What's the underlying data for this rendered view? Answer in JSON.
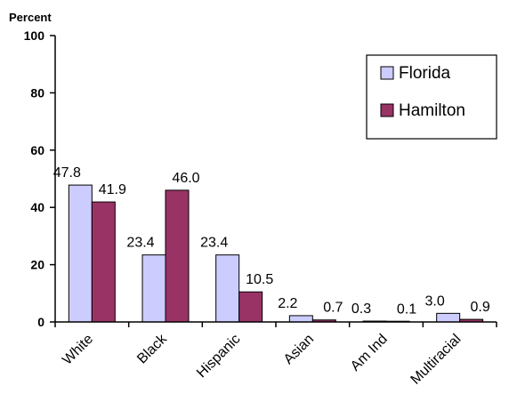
{
  "chart_data": {
    "type": "bar",
    "ylabel": "Percent",
    "ylim": [
      0,
      100
    ],
    "yticks": [
      0,
      20,
      40,
      60,
      80,
      100
    ],
    "grid": false,
    "legend_position": "top-right",
    "categories": [
      "White",
      "Black",
      "Hispanic",
      "Asian",
      "Am Ind",
      "Multiracial"
    ],
    "series": [
      {
        "name": "Florida",
        "color": "#ccccff",
        "values": [
          47.8,
          23.4,
          23.4,
          2.2,
          0.3,
          3.0
        ],
        "labels": [
          "47.8",
          "23.4",
          "23.4",
          "2.2",
          "0.3",
          "3.0"
        ]
      },
      {
        "name": "Hamilton",
        "color": "#993366",
        "values": [
          41.9,
          46.0,
          10.5,
          0.7,
          0.1,
          0.9
        ],
        "labels": [
          "41.9",
          "46.0",
          "10.5",
          "0.7",
          "0.1",
          "0.9"
        ]
      }
    ]
  }
}
